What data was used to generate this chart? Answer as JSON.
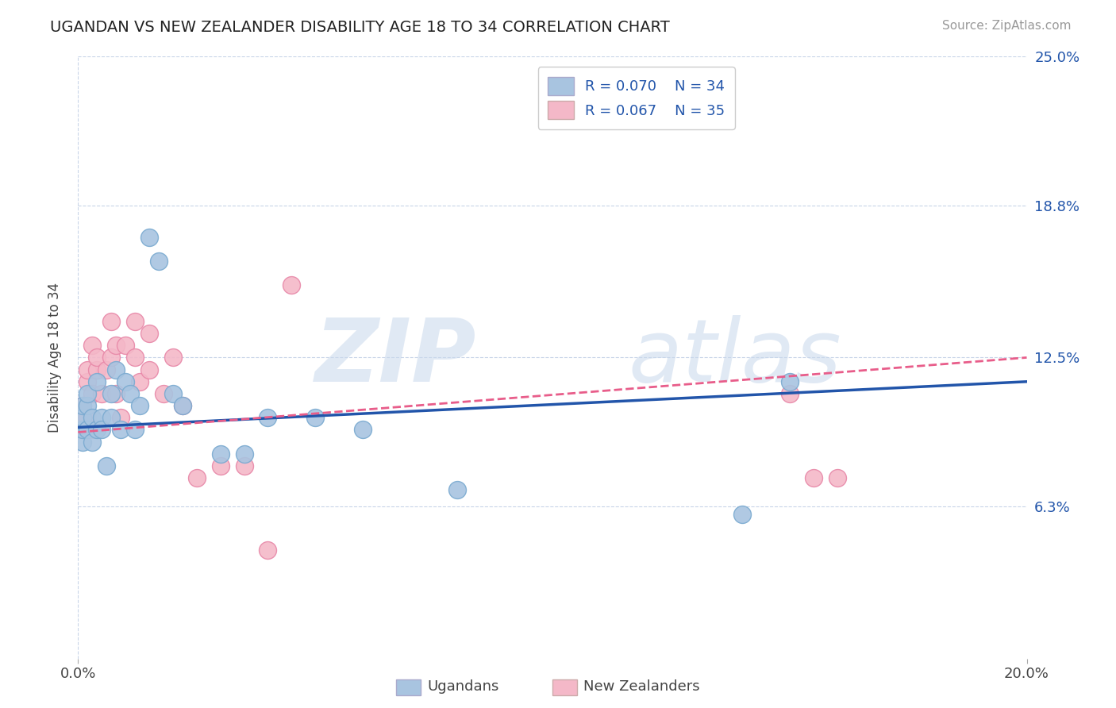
{
  "title": "UGANDAN VS NEW ZEALANDER DISABILITY AGE 18 TO 34 CORRELATION CHART",
  "source_text": "Source: ZipAtlas.com",
  "ylabel": "Disability Age 18 to 34",
  "xlim": [
    0.0,
    0.2
  ],
  "ylim": [
    0.0,
    0.25
  ],
  "ytick_positions": [
    0.063,
    0.125,
    0.188,
    0.25
  ],
  "ytick_labels": [
    "6.3%",
    "12.5%",
    "18.8%",
    "25.0%"
  ],
  "ugandan_x": [
    0.001,
    0.001,
    0.001,
    0.001,
    0.002,
    0.002,
    0.002,
    0.003,
    0.003,
    0.004,
    0.004,
    0.005,
    0.005,
    0.006,
    0.007,
    0.007,
    0.008,
    0.009,
    0.01,
    0.011,
    0.012,
    0.013,
    0.015,
    0.017,
    0.02,
    0.022,
    0.03,
    0.035,
    0.04,
    0.05,
    0.06,
    0.08,
    0.14,
    0.15
  ],
  "ugandan_y": [
    0.09,
    0.095,
    0.1,
    0.105,
    0.095,
    0.105,
    0.11,
    0.09,
    0.1,
    0.095,
    0.115,
    0.1,
    0.095,
    0.08,
    0.1,
    0.11,
    0.12,
    0.095,
    0.115,
    0.11,
    0.095,
    0.105,
    0.175,
    0.165,
    0.11,
    0.105,
    0.085,
    0.085,
    0.1,
    0.1,
    0.095,
    0.07,
    0.06,
    0.115
  ],
  "nz_x": [
    0.001,
    0.001,
    0.001,
    0.002,
    0.002,
    0.002,
    0.003,
    0.003,
    0.003,
    0.004,
    0.004,
    0.005,
    0.006,
    0.007,
    0.007,
    0.008,
    0.008,
    0.009,
    0.01,
    0.012,
    0.012,
    0.013,
    0.015,
    0.015,
    0.018,
    0.02,
    0.022,
    0.025,
    0.03,
    0.035,
    0.04,
    0.045,
    0.15,
    0.155,
    0.16
  ],
  "nz_y": [
    0.095,
    0.1,
    0.105,
    0.1,
    0.115,
    0.12,
    0.095,
    0.11,
    0.13,
    0.12,
    0.125,
    0.11,
    0.12,
    0.125,
    0.14,
    0.11,
    0.13,
    0.1,
    0.13,
    0.125,
    0.14,
    0.115,
    0.12,
    0.135,
    0.11,
    0.125,
    0.105,
    0.075,
    0.08,
    0.08,
    0.045,
    0.155,
    0.11,
    0.075,
    0.075
  ],
  "ugandan_color": "#a8c4e0",
  "nz_color": "#f4b8c8",
  "ugandan_edge": "#7aaad0",
  "nz_edge": "#e888a8",
  "trend_ugandan_color": "#2255aa",
  "trend_nz_color": "#e85d8a",
  "R_ugandan": 0.07,
  "N_ugandan": 34,
  "R_nz": 0.067,
  "N_nz": 35,
  "watermark_zip": "ZIP",
  "watermark_atlas": "atlas",
  "legend_labels": [
    "Ugandans",
    "New Zealanders"
  ],
  "background_color": "#ffffff",
  "grid_color": "#c8d4e8",
  "title_color": "#222222",
  "axis_label_color": "#444444"
}
